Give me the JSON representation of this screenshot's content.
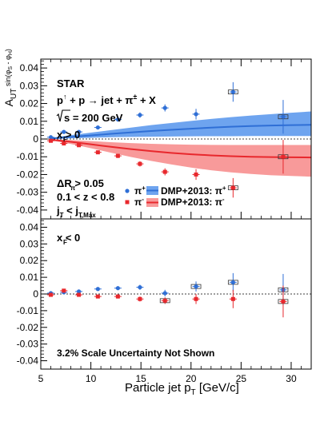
{
  "chart_data": {
    "type": "scatter",
    "title": "",
    "xlabel": "Particle jet p_T [GeV/c]",
    "ylabel": "A_UT^{sin(phi_S - phi_H)}",
    "xlim": [
      5,
      32
    ],
    "x_ticks": [
      "5",
      "10",
      "15",
      "20",
      "25",
      "30"
    ],
    "y_ticks": [
      "0.04",
      "0.03",
      "0.02",
      "0.01",
      "0",
      "-0.01",
      "-0.02",
      "-0.03",
      "-0.04"
    ],
    "scale_note": "3.2% Scale Uncertainty Not Shown",
    "colors": {
      "pi_plus": "#2f6fd6",
      "pi_minus": "#e8282d",
      "band_plus": "#6ea4ef",
      "band_minus": "#f89a9a"
    },
    "panels": [
      {
        "id": "top",
        "ylim": [
          -0.045,
          0.045
        ],
        "annotations": {
          "experiment": "STAR",
          "reaction_prefix": "p",
          "reaction_up": "↑",
          "reaction_rest": " + p → jet + π",
          "reaction_pm": "±",
          "reaction_end": " + X",
          "sqrt_s": "s = 200 GeV",
          "xf_cut": "x > 0",
          "xf_sub": "F",
          "dr_cut": "ΔR > 0.05",
          "dr_sub": "π",
          "z_cut": "0.1 < z < 0.8",
          "jt_cut_j1": "j",
          "jt_cut_s1": "T",
          "jt_cut_mid": " < j",
          "jt_cut_s2": "T,Max"
        },
        "legend": {
          "pi_plus_marker": "π",
          "pi_plus_sup": "+",
          "pi_minus_marker": "π",
          "pi_minus_sup": "-",
          "dmp_plus": "DMP+2013: π",
          "dmp_plus_sup": "+",
          "dmp_minus": "DMP+2013: π",
          "dmp_minus_sup": "-"
        },
        "series": [
          {
            "name": "π+",
            "x": [
              6.0,
              7.3,
              8.8,
              10.7,
              12.7,
              14.9,
              17.4,
              20.5,
              24.2,
              29.2
            ],
            "y": [
              0.001,
              0.004,
              0.004,
              0.0065,
              0.011,
              0.0135,
              0.0175,
              0.014,
              0.0265,
              0.0125
            ],
            "err": [
              0.0006,
              0.0008,
              0.0008,
              0.001,
              0.0012,
              0.0015,
              0.002,
              0.003,
              0.0055,
              0.0095
            ],
            "box": [
              false,
              false,
              false,
              false,
              false,
              false,
              false,
              false,
              true,
              true
            ]
          },
          {
            "name": "π-",
            "x": [
              6.0,
              7.3,
              8.8,
              10.7,
              12.7,
              14.9,
              17.4,
              20.5,
              24.2,
              29.2
            ],
            "y": [
              -0.001,
              -0.0025,
              -0.0035,
              -0.0075,
              -0.0095,
              -0.014,
              -0.0185,
              -0.02,
              -0.0275,
              -0.01
            ],
            "err": [
              0.0006,
              0.0008,
              0.0009,
              0.001,
              0.0012,
              0.0015,
              0.002,
              0.003,
              0.0055,
              0.0095
            ],
            "box": [
              false,
              false,
              false,
              false,
              false,
              false,
              false,
              false,
              true,
              true
            ]
          }
        ],
        "bands": [
          {
            "name": "DMP+2013: π+",
            "x": [
              6,
              8,
              10,
              12,
              14,
              16,
              18,
              20,
              22,
              24,
              26,
              28,
              30,
              32
            ],
            "center": [
              0.0003,
              0.0012,
              0.002,
              0.0029,
              0.0037,
              0.0045,
              0.0052,
              0.0058,
              0.0064,
              0.0069,
              0.0073,
              0.0076,
              0.0078,
              0.008
            ],
            "lower": [
              0.0,
              0.0004,
              0.0007,
              0.001,
              0.0012,
              0.0013,
              0.0014,
              0.0015,
              0.0016,
              0.0016,
              0.0017,
              0.0017,
              0.0017,
              0.0017
            ],
            "upper": [
              0.0006,
              0.0022,
              0.0036,
              0.005,
              0.0064,
              0.0078,
              0.009,
              0.0102,
              0.0113,
              0.0123,
              0.0132,
              0.014,
              0.0148,
              0.0155
            ]
          },
          {
            "name": "DMP+2013: π-",
            "x": [
              6,
              8,
              10,
              12,
              14,
              16,
              18,
              20,
              22,
              24,
              26,
              28,
              30,
              32
            ],
            "center": [
              -0.0004,
              -0.0016,
              -0.003,
              -0.0044,
              -0.0057,
              -0.0068,
              -0.0078,
              -0.0086,
              -0.0092,
              -0.0097,
              -0.01,
              -0.0102,
              -0.0103,
              -0.0104
            ],
            "lower": [
              -0.0008,
              -0.0028,
              -0.0052,
              -0.0077,
              -0.0101,
              -0.0123,
              -0.0143,
              -0.0161,
              -0.0176,
              -0.0188,
              -0.0197,
              -0.0204,
              -0.0208,
              -0.0212
            ],
            "upper": [
              -0.0001,
              -0.0006,
              -0.0012,
              -0.0018,
              -0.0023,
              -0.0027,
              -0.003,
              -0.0032,
              -0.0033,
              -0.0034,
              -0.0034,
              -0.0034,
              -0.0034,
              -0.0034
            ]
          }
        ]
      },
      {
        "id": "bottom",
        "ylim": [
          -0.045,
          0.045
        ],
        "annotations": {
          "xf_cut": "x < 0",
          "xf_sub": "F"
        },
        "series": [
          {
            "name": "π+",
            "x": [
              6.0,
              7.3,
              8.8,
              10.7,
              12.7,
              14.9,
              17.4,
              20.5,
              24.2,
              29.2
            ],
            "y": [
              0.0005,
              0.001,
              0.0015,
              0.003,
              0.0035,
              0.004,
              0.0005,
              0.0045,
              0.007,
              0.0025
            ],
            "err": [
              0.0007,
              0.0008,
              0.0009,
              0.001,
              0.0012,
              0.0015,
              0.002,
              0.003,
              0.0055,
              0.0095
            ],
            "box": [
              false,
              false,
              false,
              false,
              false,
              false,
              false,
              true,
              true,
              true
            ]
          },
          {
            "name": "π-",
            "x": [
              6.0,
              7.3,
              8.8,
              10.7,
              12.7,
              14.9,
              17.4,
              20.5,
              24.2,
              29.2
            ],
            "y": [
              -0.0005,
              0.002,
              -0.0005,
              -0.0015,
              -0.0015,
              -0.003,
              -0.004,
              -0.003,
              -0.003,
              -0.0045
            ],
            "err": [
              0.0007,
              0.0008,
              0.0009,
              0.001,
              0.0012,
              0.0015,
              0.002,
              0.003,
              0.0055,
              0.0095
            ],
            "box": [
              false,
              false,
              false,
              false,
              false,
              false,
              true,
              false,
              false,
              true
            ]
          }
        ]
      }
    ]
  }
}
